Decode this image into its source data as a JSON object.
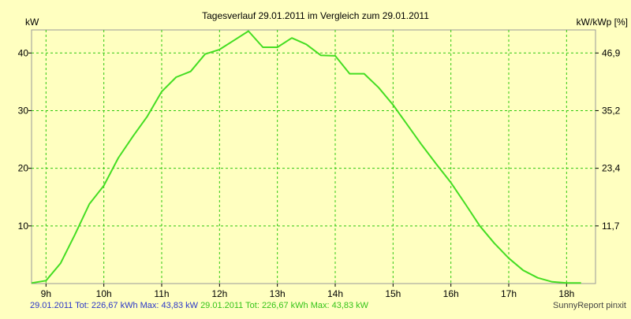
{
  "chart_data": {
    "type": "line",
    "title": "Tagesverlauf 29.01.2011 im Vergleich zum 29.01.2011",
    "ylabel_left": "kW",
    "ylabel_right": "kW/kWp [%]",
    "x_ticks": [
      "9h",
      "10h",
      "11h",
      "12h",
      "13h",
      "14h",
      "15h",
      "16h",
      "17h",
      "18h"
    ],
    "y_ticks_left": [
      "10",
      "20",
      "30",
      "40"
    ],
    "y_ticks_right": [
      "11,7",
      "23,4",
      "35,2",
      "46,9"
    ],
    "xlim": [
      8.75,
      18.5
    ],
    "ylim": [
      0,
      44
    ],
    "grid": true,
    "series": [
      {
        "color": "#44dd22",
        "x": [
          8.75,
          9.0,
          9.25,
          9.5,
          9.75,
          10.0,
          10.25,
          10.5,
          10.75,
          11.0,
          11.25,
          11.5,
          11.75,
          12.0,
          12.25,
          12.5,
          12.75,
          13.0,
          13.25,
          13.5,
          13.75,
          14.0,
          14.25,
          14.5,
          14.75,
          15.0,
          15.25,
          15.5,
          15.75,
          16.0,
          16.25,
          16.5,
          16.75,
          17.0,
          17.25,
          17.5,
          17.75,
          18.0,
          18.25
        ],
        "y": [
          0.1,
          0.5,
          3.5,
          8.5,
          13.8,
          17.0,
          21.8,
          25.5,
          29.0,
          33.3,
          35.8,
          36.8,
          39.8,
          40.6,
          42.2,
          43.8,
          41.0,
          41.0,
          42.6,
          41.5,
          39.6,
          39.5,
          36.4,
          36.4,
          34.0,
          31.0,
          27.5,
          24.0,
          20.7,
          17.5,
          13.8,
          10.0,
          7.0,
          4.4,
          2.3,
          1.0,
          0.3,
          0.1,
          0.1
        ]
      }
    ]
  },
  "footer": {
    "series1_text": "29.01.2011 Tot: 226,67 kWh Max: 43,83 kW",
    "series2_text": "29.01.2011 Tot: 226,67 kWh Max: 43,83 kW",
    "credit": "SunnyReport pinxit"
  },
  "colors": {
    "background": "#ffffc0",
    "grid": "#2fc80e",
    "line": "#44dd22",
    "series1_text": "#2b37c8",
    "series2_text": "#35c418"
  }
}
